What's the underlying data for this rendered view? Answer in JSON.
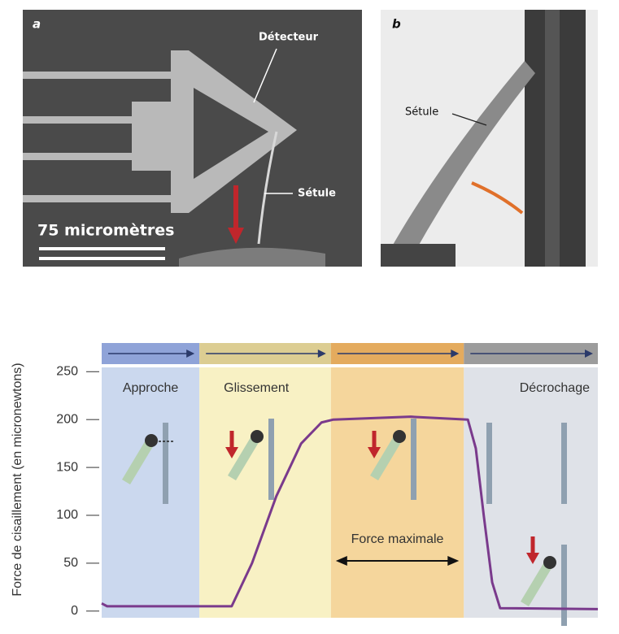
{
  "panels": {
    "a": {
      "letter": "a",
      "detector": "Détecteur",
      "setule": "Sétule",
      "scale": "75 micromètres"
    },
    "b": {
      "letter": "b",
      "setule": "Sétule"
    }
  },
  "chart_data": {
    "type": "line",
    "y_label": "Force de cisaillement (en micronewtons)",
    "x": [
      0,
      1.1,
      26.2,
      30.3,
      35.2,
      40.2,
      44.3,
      46.7,
      62.3,
      73.8,
      75.4,
      77.0,
      78.7,
      80.3,
      100
    ],
    "values": [
      8,
      5,
      5,
      50,
      120,
      175,
      197,
      200,
      203,
      200,
      170,
      100,
      30,
      3,
      2
    ],
    "color": "#7a3a8c",
    "xlim": [
      0,
      100
    ],
    "ylim": [
      -7,
      280
    ],
    "yticks": [
      0,
      50,
      100,
      150,
      200,
      250
    ],
    "phases": [
      {
        "name": "Approche",
        "start": 0,
        "end": 19.7,
        "color": "#cbd8ee",
        "header_color": "#8fa3d8"
      },
      {
        "name": "Glissement",
        "start": 19.7,
        "end": 46.2,
        "color": "#f8f1c4",
        "header_color": "#dccd92"
      },
      {
        "start": 46.2,
        "end": 73.0,
        "color": "#f5d69c",
        "header_color": "#e4ab5e"
      },
      {
        "name": "Décrochage",
        "start": 73.0,
        "end": 100,
        "color": "#dfe2e8",
        "header_color": "#9c9c9c"
      }
    ],
    "annotation": "Force maximale"
  }
}
